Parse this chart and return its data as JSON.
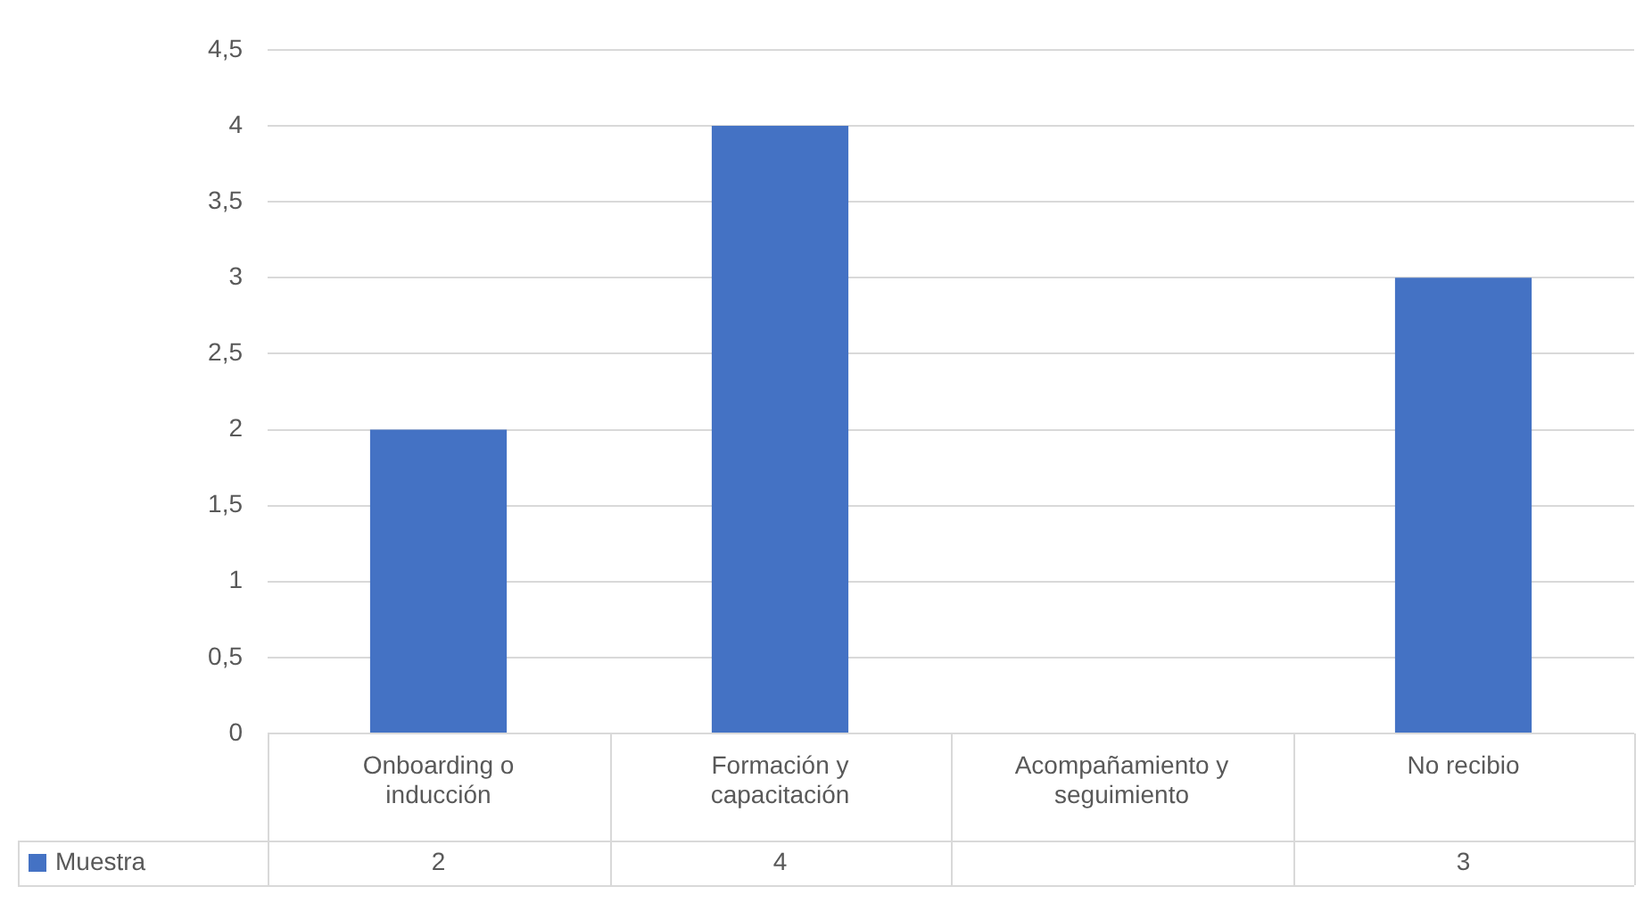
{
  "chart_data": {
    "type": "bar",
    "categories": [
      "Onboarding o inducción",
      "Formación y capacitación",
      "Acompañamiento y seguimiento",
      "No recibio"
    ],
    "series": [
      {
        "name": "Muestra",
        "color": "#4472c4",
        "values": [
          2,
          4,
          null,
          3
        ]
      }
    ],
    "ylim": [
      0,
      4.5
    ],
    "yticks": [
      0,
      {
        "value": 0.5,
        "label": "0,5"
      },
      1,
      {
        "value": 1.5,
        "label": "1,5"
      },
      2,
      {
        "value": 2.5,
        "label": "2,5"
      },
      3,
      {
        "value": 3.5,
        "label": "3,5"
      },
      4,
      {
        "value": 4.5,
        "label": "4,5"
      }
    ],
    "grid": "y",
    "legend": "bottom",
    "data_labels": true
  }
}
